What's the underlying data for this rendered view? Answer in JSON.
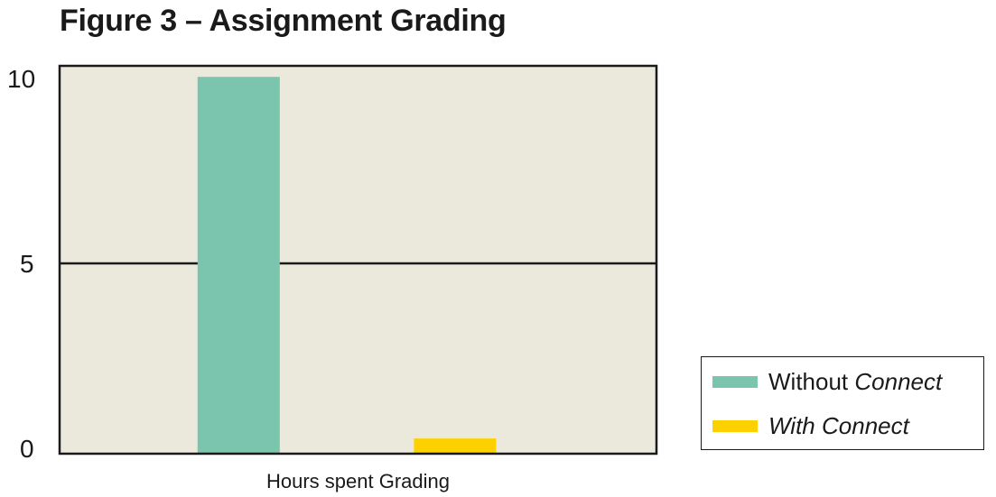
{
  "title": "Figure 3 – Assignment Grading",
  "chart_data": {
    "type": "bar",
    "title": "Figure 3 – Assignment Grading",
    "xlabel": "Hours spent Grading",
    "ylabel": "",
    "ylim": [
      0,
      10
    ],
    "yticks": [
      "0",
      "5",
      "10"
    ],
    "grid": "horizontal line at 5",
    "legend_position": "right-bottom",
    "background": "#ebe8dc",
    "series": [
      {
        "name_plain": "Without ",
        "name_italic": "Connect",
        "value": 9.9,
        "color": "#7bc4ae"
      },
      {
        "name_plain": "",
        "name_italic": "With Connect",
        "value": 0.4,
        "color": "#fdd000"
      }
    ]
  }
}
